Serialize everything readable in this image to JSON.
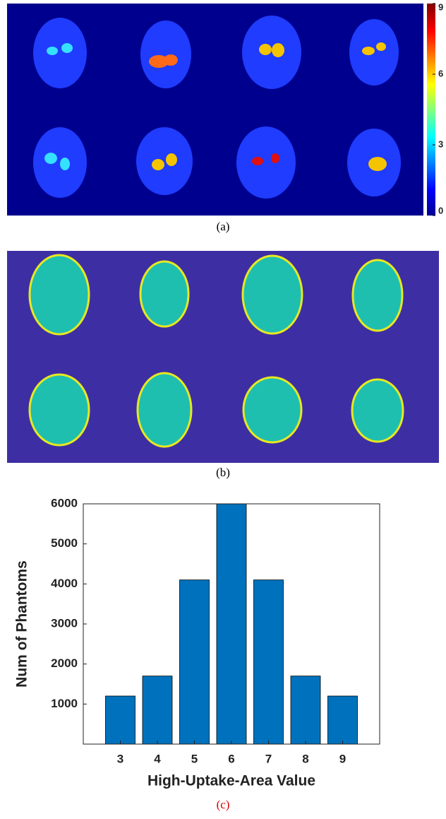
{
  "figure_a": {
    "caption": "(a)",
    "colorbar": {
      "lim": [
        0,
        9
      ],
      "ticks": [
        0,
        3,
        6,
        9
      ]
    }
  },
  "figure_b": {
    "caption": "(b)"
  },
  "chart_data": {
    "type": "bar",
    "x": [
      3,
      4,
      5,
      6,
      7,
      8,
      9
    ],
    "values": [
      1200,
      1700,
      4100,
      6000,
      4100,
      1700,
      1200
    ],
    "color": "#0072bd",
    "xlim": [
      2,
      10
    ],
    "xticks": [
      3,
      4,
      5,
      6,
      7,
      8,
      9
    ],
    "ylim": [
      0,
      6000
    ],
    "yticks": [
      1000,
      2000,
      3000,
      4000,
      5000,
      6000
    ],
    "xlabel": "High-Uptake-Area Value",
    "ylabel": "Num of Phantoms",
    "caption": "(c)"
  }
}
